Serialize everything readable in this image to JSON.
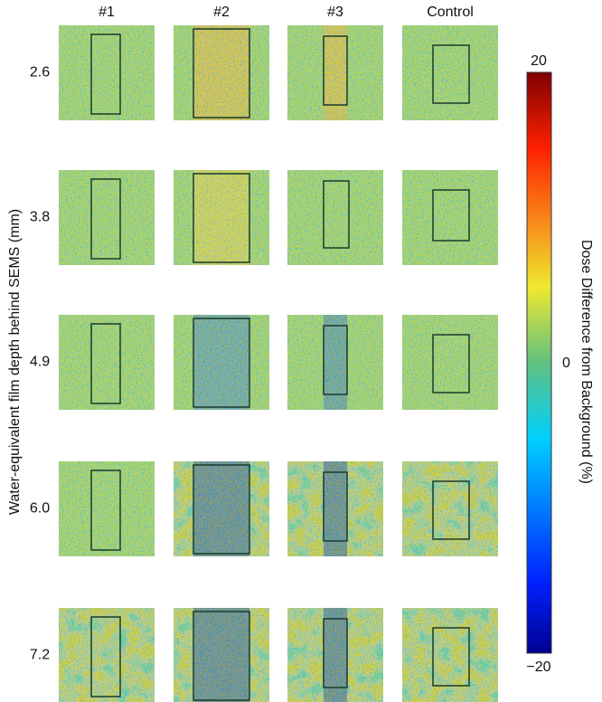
{
  "columns": [
    "#1",
    "#2",
    "#3",
    "Control"
  ],
  "rows": [
    "2.6",
    "3.8",
    "4.9",
    "6.0",
    "7.2"
  ],
  "y_label": "Water-equivalent film depth behind SEMS (mm)",
  "colorbar": {
    "label": "Dose Difference from Background (%)",
    "ticks": [
      "20",
      "0",
      "−20"
    ]
  }
}
